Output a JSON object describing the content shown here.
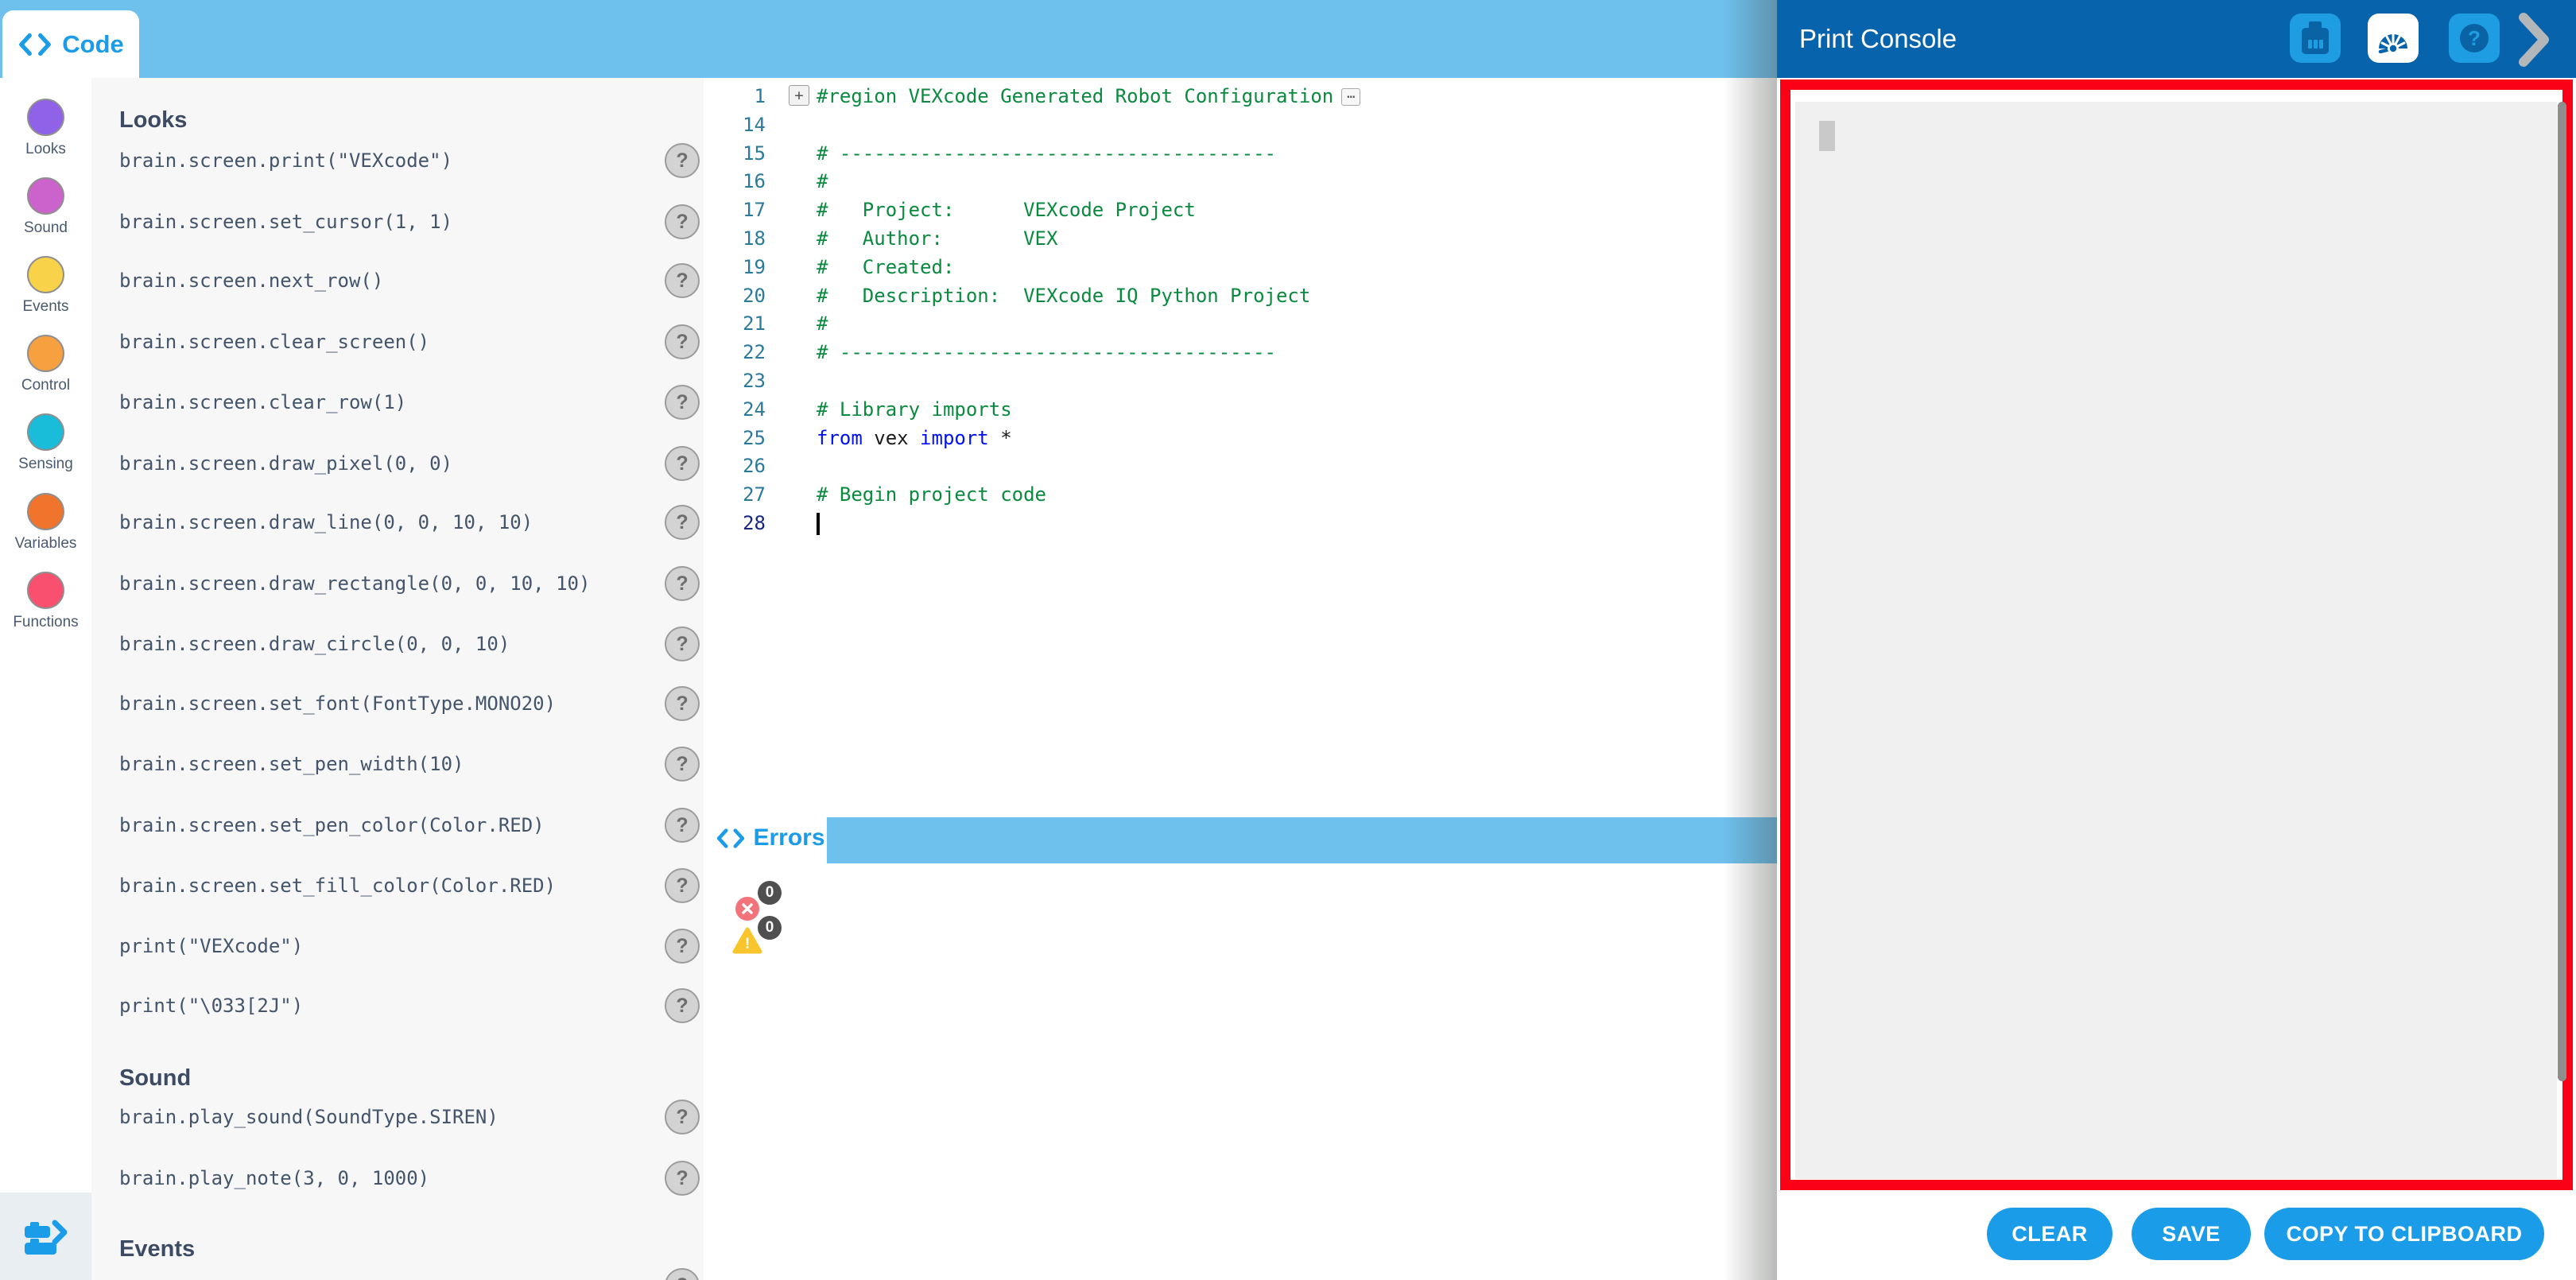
{
  "app": {
    "code_tab": "Code",
    "errors_tab": "Errors"
  },
  "colors": {
    "accent_blue": "#1b9ce9",
    "topbar_blue": "#6ec0ed",
    "header_blue": "#0763ab",
    "highlight_red": "#fb0117",
    "error_red": "#f2737a",
    "warning_yellow": "#f8c52c"
  },
  "sidebar": {
    "categories": [
      {
        "label": "Looks",
        "color": "#8f62e8"
      },
      {
        "label": "Sound",
        "color": "#cc63cd"
      },
      {
        "label": "Events",
        "color": "#f8d349"
      },
      {
        "label": "Control",
        "color": "#f6a03f"
      },
      {
        "label": "Sensing",
        "color": "#19bcd9"
      },
      {
        "label": "Variables",
        "color": "#f1742c"
      },
      {
        "label": "Functions",
        "color": "#f8506e"
      }
    ],
    "blocks_toggle_icon": "blocks-to-text-icon"
  },
  "toolbox": {
    "help_glyph": "?",
    "sections": [
      {
        "heading": "Looks",
        "commands": [
          "brain.screen.print(\"VEXcode\")",
          "brain.screen.set_cursor(1, 1)",
          "brain.screen.next_row()",
          "brain.screen.clear_screen()",
          "brain.screen.clear_row(1)",
          "brain.screen.draw_pixel(0, 0)",
          "brain.screen.draw_line(0, 0, 10, 10)",
          "brain.screen.draw_rectangle(0, 0, 10, 10)",
          "brain.screen.draw_circle(0, 0, 10)",
          "brain.screen.set_font(FontType.MONO20)",
          "brain.screen.set_pen_width(10)",
          "brain.screen.set_pen_color(Color.RED)",
          "brain.screen.set_fill_color(Color.RED)",
          "print(\"VEXcode\")",
          "print(\"\\033[2J\")"
        ]
      },
      {
        "heading": "Sound",
        "commands": [
          "brain.play_sound(SoundType.SIREN)",
          "brain.play_note(3, 0, 1000)"
        ]
      },
      {
        "heading": "Events",
        "commands": []
      }
    ]
  },
  "editor": {
    "lines": [
      {
        "n": "1",
        "fold": "+",
        "ellipsis": "⋯",
        "segments": [
          {
            "text": "#region VEXcode Generated Robot Configuration",
            "type": "comment"
          }
        ]
      },
      {
        "n": "14",
        "segments": []
      },
      {
        "n": "15",
        "segments": [
          {
            "text": "# --------------------------------------",
            "type": "comment"
          }
        ]
      },
      {
        "n": "16",
        "segments": [
          {
            "text": "#",
            "type": "comment"
          }
        ]
      },
      {
        "n": "17",
        "segments": [
          {
            "text": "#   Project:      VEXcode Project",
            "type": "comment"
          }
        ]
      },
      {
        "n": "18",
        "segments": [
          {
            "text": "#   Author:       VEX",
            "type": "comment"
          }
        ]
      },
      {
        "n": "19",
        "segments": [
          {
            "text": "#   Created:",
            "type": "comment"
          }
        ]
      },
      {
        "n": "20",
        "segments": [
          {
            "text": "#   Description:  VEXcode IQ Python Project",
            "type": "comment"
          }
        ]
      },
      {
        "n": "21",
        "segments": [
          {
            "text": "#",
            "type": "comment"
          }
        ]
      },
      {
        "n": "22",
        "segments": [
          {
            "text": "# --------------------------------------",
            "type": "comment"
          }
        ]
      },
      {
        "n": "23",
        "segments": []
      },
      {
        "n": "24",
        "segments": [
          {
            "text": "# Library imports",
            "type": "comment"
          }
        ]
      },
      {
        "n": "25",
        "segments": [
          {
            "text": "from",
            "type": "keyword"
          },
          {
            "text": " vex ",
            "type": "plain"
          },
          {
            "text": "import",
            "type": "keyword"
          },
          {
            "text": " *",
            "type": "plain"
          }
        ]
      },
      {
        "n": "26",
        "segments": []
      },
      {
        "n": "27",
        "segments": [
          {
            "text": "# Begin project code",
            "type": "comment"
          }
        ]
      },
      {
        "n": "28",
        "active": true,
        "cursor": true,
        "segments": []
      }
    ]
  },
  "errors_panel": {
    "error_count": "0",
    "warning_count": "0"
  },
  "print_console": {
    "title": "Print Console",
    "header_icons": [
      {
        "name": "brain-device-icon"
      },
      {
        "name": "console-gauge-icon",
        "active": true
      },
      {
        "name": "help-icon"
      }
    ],
    "buttons": [
      {
        "label": "CLEAR"
      },
      {
        "label": "SAVE"
      },
      {
        "label": "COPY TO CLIPBOARD"
      }
    ]
  }
}
